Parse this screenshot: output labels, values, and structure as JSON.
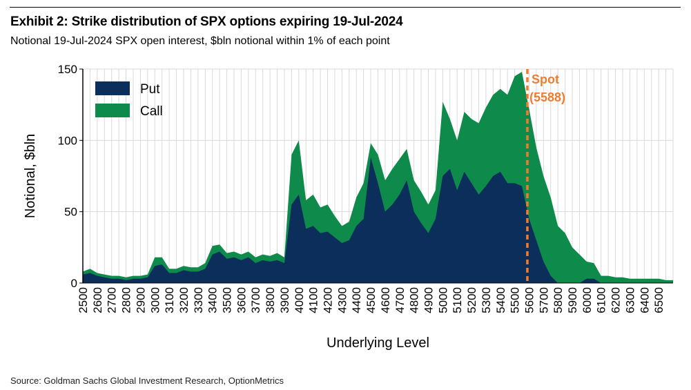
{
  "header": {
    "title": "Exhibit 2: Strike distribution of SPX options expiring 19-Jul-2024",
    "subtitle": "Notional 19-Jul-2024 SPX open interest, $bln notional within 1% of each point"
  },
  "footer": {
    "source": "Source: Goldman Sachs Global Investment Research, OptionMetrics"
  },
  "colors": {
    "put": "#0B2F5A",
    "call": "#0E8A4A",
    "spot": "#EE7D31",
    "grid": "#D9D9D9"
  },
  "chart_data": {
    "type": "area",
    "stacked": true,
    "xlabel": "Underlying Level",
    "ylabel": "Notional, $bln",
    "xlim": [
      2500,
      6600
    ],
    "ylim": [
      0,
      150
    ],
    "xticks": [
      2500,
      2600,
      2700,
      2800,
      2900,
      3000,
      3100,
      3200,
      3300,
      3400,
      3500,
      3600,
      3700,
      3800,
      3900,
      4000,
      4100,
      4200,
      4300,
      4400,
      4500,
      4600,
      4700,
      4800,
      4900,
      5000,
      5100,
      5200,
      5300,
      5400,
      5500,
      5600,
      5700,
      5800,
      5900,
      6000,
      6100,
      6200,
      6300,
      6400,
      6500
    ],
    "yticks": [
      0,
      50,
      100,
      150
    ],
    "grid": true,
    "legend_position": "top-left",
    "x": [
      2500,
      2550,
      2600,
      2650,
      2700,
      2750,
      2800,
      2850,
      2900,
      2950,
      3000,
      3050,
      3100,
      3150,
      3200,
      3250,
      3300,
      3350,
      3400,
      3450,
      3500,
      3550,
      3600,
      3650,
      3700,
      3750,
      3800,
      3850,
      3900,
      3950,
      4000,
      4050,
      4100,
      4150,
      4200,
      4250,
      4300,
      4350,
      4400,
      4450,
      4500,
      4550,
      4600,
      4650,
      4700,
      4750,
      4800,
      4850,
      4900,
      4950,
      5000,
      5050,
      5100,
      5150,
      5200,
      5250,
      5300,
      5350,
      5400,
      5450,
      5500,
      5550,
      5600,
      5650,
      5700,
      5750,
      5800,
      5850,
      5900,
      5950,
      6000,
      6050,
      6100,
      6150,
      6200,
      6250,
      6300,
      6350,
      6400,
      6450,
      6500,
      6550,
      6600
    ],
    "series": [
      {
        "name": "Put",
        "values": [
          6,
          7,
          5,
          4,
          3,
          3,
          2,
          3,
          3,
          4,
          12,
          13,
          7,
          7,
          9,
          8,
          8,
          10,
          20,
          22,
          17,
          18,
          16,
          18,
          14,
          16,
          15,
          16,
          14,
          55,
          62,
          38,
          40,
          35,
          36,
          32,
          28,
          30,
          40,
          45,
          88,
          70,
          50,
          55,
          62,
          72,
          50,
          42,
          35,
          45,
          75,
          80,
          65,
          78,
          70,
          62,
          68,
          75,
          78,
          70,
          70,
          68,
          45,
          30,
          15,
          5,
          0,
          0,
          0,
          0,
          3,
          3,
          0,
          0,
          0,
          0,
          0,
          0,
          0,
          0,
          0,
          0,
          0
        ]
      },
      {
        "name": "Call",
        "values": [
          2,
          3,
          2,
          2,
          2,
          2,
          2,
          2,
          2,
          2,
          6,
          5,
          3,
          3,
          3,
          3,
          3,
          4,
          6,
          5,
          4,
          4,
          4,
          4,
          4,
          4,
          4,
          5,
          4,
          35,
          38,
          20,
          22,
          18,
          19,
          15,
          12,
          13,
          20,
          25,
          10,
          20,
          22,
          25,
          25,
          22,
          22,
          22,
          20,
          20,
          52,
          35,
          35,
          42,
          45,
          50,
          55,
          57,
          58,
          62,
          75,
          80,
          77,
          65,
          60,
          55,
          40,
          35,
          25,
          20,
          12,
          11,
          5,
          5,
          4,
          4,
          3,
          3,
          3,
          3,
          3,
          2,
          2
        ]
      }
    ],
    "annotation": {
      "x": 5588,
      "label_line1": "Spot",
      "label_line2": "(5588)"
    }
  }
}
